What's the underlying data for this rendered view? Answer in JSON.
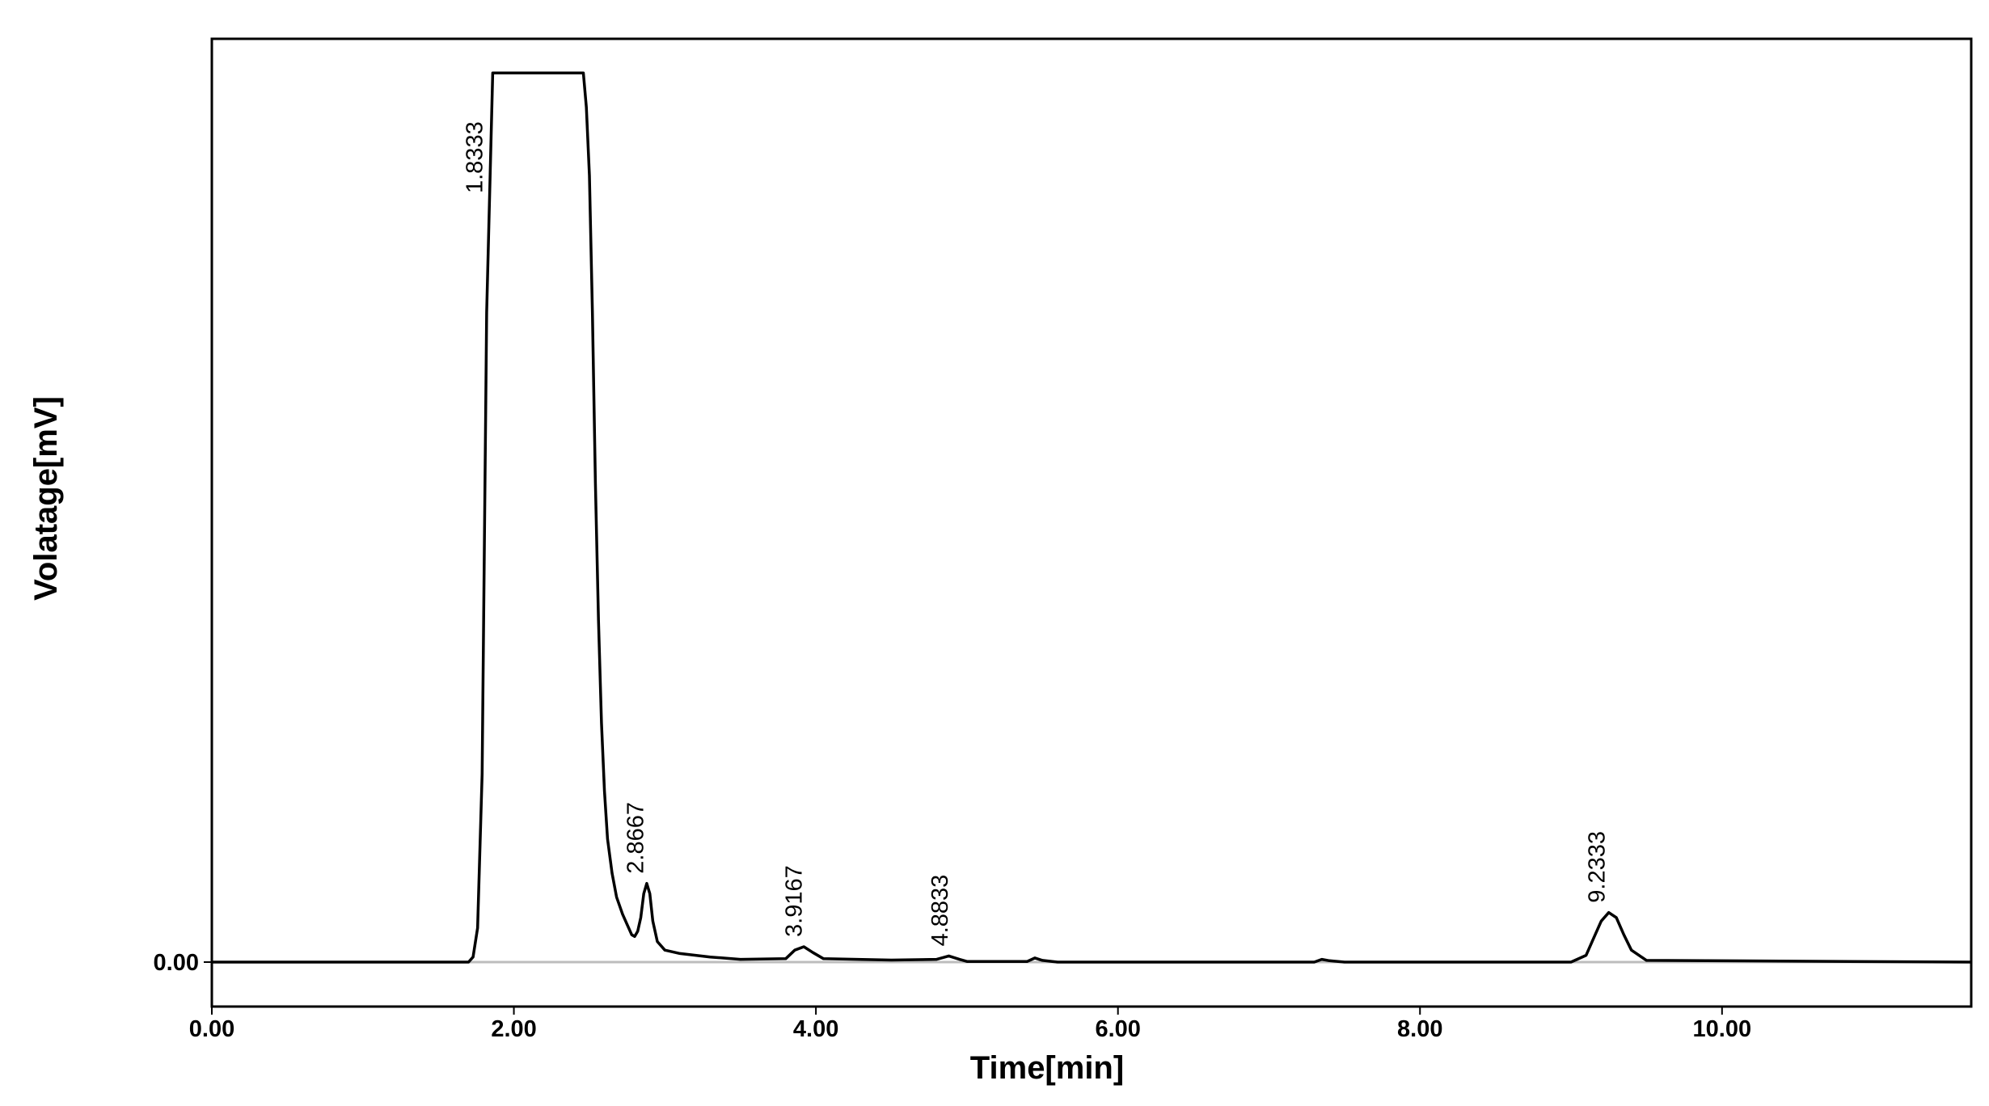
{
  "chart_data": {
    "type": "line",
    "title": "",
    "xlabel": "Time[min]",
    "ylabel": "Volatage[mV]",
    "xlim": [
      0,
      11.65
    ],
    "ylim": [
      -1.3,
      27.0
    ],
    "grid": false,
    "legend": "none",
    "x_ticks": [
      0,
      2,
      4,
      6,
      8,
      10
    ],
    "x_tick_labels": [
      "0.00",
      "2.00",
      "4.00",
      "6.00",
      "8.00",
      "10.00"
    ],
    "y_ticks": [
      0
    ],
    "y_tick_labels": [
      "0.00"
    ],
    "y_units_note": "relative signal; only the 0.00 mV tick is printed",
    "baseline": 0,
    "series": [
      {
        "color": "#000000",
        "baseline_color": "#bdbdbd",
        "x": [
          0.0,
          1.7,
          1.73,
          1.76,
          1.79,
          1.82,
          1.86,
          1.9,
          2.46,
          2.48,
          2.5,
          2.52,
          2.54,
          2.56,
          2.58,
          2.6,
          2.62,
          2.65,
          2.68,
          2.72,
          2.76,
          2.78,
          2.8,
          2.82,
          2.84,
          2.86,
          2.88,
          2.9,
          2.92,
          2.95,
          3.0,
          3.1,
          3.3,
          3.5,
          3.8,
          3.86,
          3.92,
          3.98,
          4.05,
          4.5,
          4.8,
          4.88,
          4.95,
          5.0,
          5.4,
          5.45,
          5.5,
          5.6,
          7.3,
          7.35,
          7.4,
          7.5,
          9.0,
          9.1,
          9.15,
          9.2,
          9.25,
          9.3,
          9.35,
          9.4,
          9.5,
          11.65
        ],
        "y": [
          0,
          0,
          0.15,
          1.0,
          5.5,
          19.0,
          26.0,
          26.0,
          26.0,
          25.0,
          23.0,
          19.0,
          14.0,
          10.0,
          7.0,
          5.0,
          3.6,
          2.6,
          1.9,
          1.4,
          1.0,
          0.8,
          0.75,
          0.9,
          1.3,
          2.0,
          2.3,
          2.0,
          1.2,
          0.6,
          0.35,
          0.25,
          0.15,
          0.08,
          0.1,
          0.35,
          0.45,
          0.28,
          0.1,
          0.06,
          0.08,
          0.18,
          0.08,
          0.02,
          0.02,
          0.12,
          0.05,
          0,
          0,
          0.08,
          0.04,
          0,
          0,
          0.2,
          0.7,
          1.2,
          1.45,
          1.3,
          0.8,
          0.35,
          0.05,
          0
        ]
      }
    ],
    "annotations": [
      {
        "x": 1.8333,
        "y": 26.0,
        "text": "1.8333"
      },
      {
        "x": 2.8667,
        "y": 2.3,
        "text": "2.8667"
      },
      {
        "x": 3.9167,
        "y": 0.45,
        "text": "3.9167"
      },
      {
        "x": 4.8833,
        "y": 0.18,
        "text": "4.8833"
      },
      {
        "x": 9.2333,
        "y": 1.45,
        "text": "9.2333"
      }
    ]
  }
}
